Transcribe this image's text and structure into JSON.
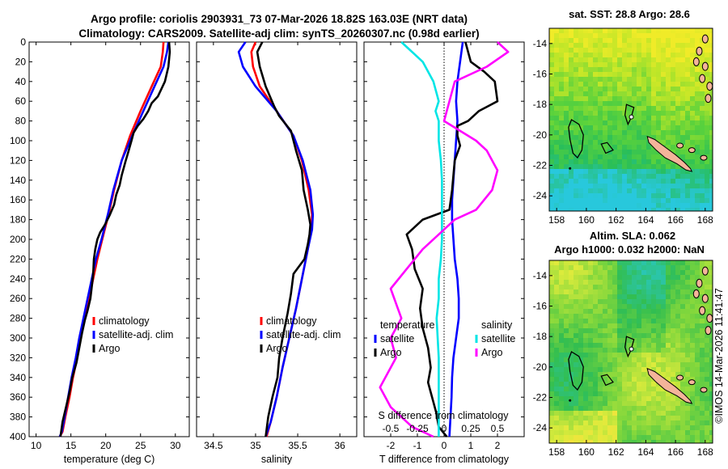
{
  "title_line1": "Argo profile: coriolis 2903931_73 07-Mar-2026 18.82S 163.03E (NRT data)",
  "title_line2": "Climatology: CARS2009. Satellite-adj clim: synTS_20260307.nc (0.98d earlier)",
  "copyright": "©IMOS 14-Mar-2026 11:41:47",
  "colors": {
    "climatology": "#ff0000",
    "satellite": "#0000ff",
    "argo": "#000000",
    "salinity_sat": "#00e5e5",
    "salinity_argo": "#ff00ff",
    "land": "#f4b49a"
  },
  "chart_data": [
    {
      "type": "line",
      "name": "temperature-profile",
      "xlabel": "temperature (deg C)",
      "xlim": [
        9,
        32
      ],
      "xticks": [
        10,
        15,
        20,
        25,
        30
      ],
      "ylim": [
        0,
        400
      ],
      "yticks": [
        0,
        20,
        40,
        60,
        80,
        100,
        120,
        140,
        160,
        180,
        200,
        220,
        240,
        260,
        280,
        300,
        320,
        340,
        360,
        380,
        400
      ],
      "legend": [
        "climatology",
        "satellite-adj. clim",
        "Argo"
      ],
      "legend_location": "lower-right",
      "series": [
        {
          "name": "climatology",
          "color": "#ff0000",
          "x": [
            28.3,
            28.2,
            27.9,
            26.6,
            25.0,
            23.5,
            22.3,
            21.2,
            20.4,
            19.5,
            18.8,
            18.2,
            17.6,
            17.0,
            16.4,
            15.9,
            15.3,
            14.8,
            14.2,
            13.8,
            13.4
          ],
          "depth": [
            0,
            10,
            25,
            45,
            70,
            95,
            120,
            150,
            175,
            200,
            220,
            240,
            260,
            280,
            300,
            320,
            340,
            360,
            380,
            395,
            400
          ]
        },
        {
          "name": "satellite-adj. clim",
          "color": "#0000ff",
          "x": [
            29.0,
            28.8,
            28.3,
            27.0,
            25.4,
            23.8,
            22.3,
            21.1,
            20.3,
            19.4,
            18.6,
            18.0,
            17.4,
            16.8,
            16.2,
            15.7,
            15.1,
            14.6,
            14.1,
            13.7,
            13.4
          ],
          "depth": [
            0,
            10,
            25,
            45,
            70,
            95,
            120,
            150,
            175,
            200,
            220,
            240,
            260,
            280,
            300,
            320,
            340,
            360,
            380,
            395,
            400
          ]
        },
        {
          "name": "Argo",
          "color": "#000000",
          "x": [
            29.1,
            29.2,
            29.0,
            28.5,
            27.5,
            26.6,
            26.1,
            25.4,
            24.6,
            24.0,
            23.7,
            23.3,
            22.8,
            22.3,
            22.0,
            21.5,
            21.2,
            20.6,
            19.9,
            19.2,
            18.8,
            18.5,
            18.3,
            18.2,
            18.0,
            17.8,
            17.4,
            17.0,
            16.6,
            16.2,
            15.8,
            15.2,
            14.8,
            14.3,
            13.8,
            13.5
          ],
          "depth": [
            0,
            10,
            25,
            40,
            55,
            62,
            70,
            78,
            85,
            92,
            100,
            110,
            122,
            135,
            145,
            155,
            165,
            175,
            185,
            193,
            200,
            210,
            220,
            235,
            248,
            260,
            272,
            282,
            295,
            310,
            325,
            340,
            355,
            370,
            385,
            400
          ]
        }
      ]
    },
    {
      "type": "line",
      "name": "salinity-profile",
      "xlabel": "salinity",
      "xlim": [
        34.3,
        36.2
      ],
      "xticks": [
        34.5,
        35,
        35.5,
        36
      ],
      "ylim": [
        0,
        400
      ],
      "legend": [
        "climatology",
        "satellite-adj. clim",
        "Argo"
      ],
      "legend_location": "lower-right",
      "series": [
        {
          "name": "climatology",
          "color": "#ff0000",
          "x": [
            35.0,
            34.95,
            34.97,
            35.05,
            35.25,
            35.45,
            35.55,
            35.63,
            35.67,
            35.66,
            35.62,
            35.55,
            35.48,
            35.4,
            35.32,
            35.25,
            35.18,
            35.13
          ],
          "depth": [
            0,
            10,
            25,
            45,
            70,
            95,
            120,
            150,
            175,
            190,
            210,
            240,
            270,
            300,
            330,
            360,
            385,
            400
          ]
        },
        {
          "name": "satellite-adj. clim",
          "color": "#0000ff",
          "x": [
            34.88,
            34.8,
            34.85,
            35.0,
            35.25,
            35.45,
            35.56,
            35.65,
            35.68,
            35.67,
            35.62,
            35.55,
            35.48,
            35.4,
            35.32,
            35.25,
            35.18,
            35.12
          ],
          "depth": [
            0,
            10,
            25,
            45,
            70,
            95,
            120,
            150,
            175,
            190,
            210,
            240,
            270,
            300,
            330,
            360,
            385,
            400
          ]
        },
        {
          "name": "Argo",
          "color": "#000000",
          "x": [
            35.08,
            35.02,
            35.05,
            35.12,
            35.22,
            35.28,
            35.42,
            35.48,
            35.55,
            35.57,
            35.62,
            35.65,
            35.64,
            35.62,
            35.58,
            35.45,
            35.42,
            35.38,
            35.32,
            35.28,
            35.26,
            35.2,
            35.15,
            35.12
          ],
          "depth": [
            0,
            10,
            25,
            45,
            65,
            75,
            90,
            110,
            130,
            150,
            170,
            185,
            195,
            205,
            220,
            235,
            255,
            275,
            300,
            320,
            340,
            360,
            380,
            400
          ]
        }
      ]
    },
    {
      "type": "line",
      "name": "difference-profile",
      "xlabel": "T difference from climatology",
      "xlabel_top": "S difference from climatology",
      "xlim": [
        -3,
        3
      ],
      "xticks": [
        -2,
        -1,
        0,
        1,
        2
      ],
      "top_xticks": [
        -0.5,
        -0.25,
        0,
        0.25,
        0.5
      ],
      "top_tick_labels": [
        "-0.5",
        "-0.25",
        "0",
        "0.25",
        "0.5"
      ],
      "ylim": [
        0,
        400
      ],
      "legend_temperature": [
        "temperature",
        "satellite",
        "Argo"
      ],
      "legend_salinity": [
        "salinity",
        "satellite",
        "Argo"
      ],
      "series": [
        {
          "name": "temperature satellite",
          "color": "#0000ff",
          "x": [
            0.7,
            0.6,
            0.5,
            0.45,
            0.5,
            0.45,
            0.4,
            0.35,
            0.3,
            0.3,
            0.35,
            0.4,
            0.5,
            0.55,
            0.55,
            0.45,
            0.35,
            0.3,
            0.28,
            0.2
          ],
          "depth": [
            0,
            20,
            40,
            60,
            80,
            100,
            120,
            140,
            160,
            180,
            200,
            220,
            240,
            260,
            280,
            300,
            320,
            340,
            360,
            400
          ]
        },
        {
          "name": "temperature Argo",
          "color": "#000000",
          "x": [
            0.8,
            0.9,
            1.0,
            1.5,
            1.9,
            2.0,
            1.3,
            0.9,
            0.5,
            0.5,
            0.6,
            0.4,
            0.3,
            0.2,
            -0.8,
            -1.4,
            -1.2,
            -1.1,
            -0.8,
            -0.9,
            -0.8,
            -0.6,
            -0.5,
            -0.6,
            -0.5,
            -0.4,
            -0.3,
            -0.2,
            0.1
          ],
          "depth": [
            0,
            10,
            20,
            30,
            40,
            60,
            70,
            80,
            85,
            95,
            105,
            120,
            150,
            170,
            180,
            195,
            210,
            230,
            250,
            270,
            290,
            310,
            330,
            345,
            355,
            365,
            375,
            390,
            400
          ]
        },
        {
          "name": "salinity satellite",
          "color": "#00e5e5",
          "x": [
            -0.4,
            -0.2,
            -0.1,
            -0.05,
            -0.08,
            -0.05,
            -0.05,
            -0.03,
            -0.02,
            -0.02,
            -0.02,
            -0.02,
            -0.03,
            -0.05,
            -0.05,
            -0.07,
            -0.05,
            -0.05,
            -0.05
          ],
          "depth": [
            0,
            20,
            40,
            60,
            70,
            80,
            100,
            120,
            140,
            160,
            180,
            200,
            220,
            240,
            260,
            280,
            320,
            360,
            400
          ]
        },
        {
          "name": "salinity Argo",
          "color": "#ff00ff",
          "x": [
            0.5,
            0.6,
            0.4,
            0.1,
            0.05,
            0.0,
            0.3,
            0.4,
            0.5,
            0.45,
            0.3,
            0.1,
            -0.05,
            -0.2,
            -0.5,
            -0.4,
            -0.5,
            -0.45,
            -0.6,
            -0.5,
            -0.3,
            -0.1
          ],
          "depth": [
            0,
            10,
            25,
            40,
            60,
            80,
            100,
            110,
            130,
            150,
            170,
            180,
            195,
            210,
            250,
            280,
            300,
            320,
            350,
            370,
            390,
            400
          ]
        }
      ]
    },
    {
      "type": "heatmap",
      "name": "sst-map",
      "title": "sat. SST: 28.8 Argo: 28.6",
      "xticks": [
        158,
        160,
        162,
        164,
        166,
        168
      ],
      "yticks": [
        -14,
        -16,
        -18,
        -20,
        -22,
        -24
      ],
      "xlim": [
        157.5,
        168.5
      ],
      "ylim": [
        -25,
        -13
      ],
      "argo_position": {
        "lon": 163.03,
        "lat": -18.82
      }
    },
    {
      "type": "heatmap",
      "name": "sla-map",
      "title": "Altim. SLA: 0.062",
      "subtitle": "Argo h1000: 0.032 h2000: NaN",
      "xticks": [
        158,
        160,
        162,
        164,
        166,
        168
      ],
      "yticks": [
        -14,
        -16,
        -18,
        -20,
        -22,
        -24
      ],
      "xlim": [
        157.5,
        168.5
      ],
      "ylim": [
        -25,
        -13
      ],
      "argo_position": {
        "lon": 163.03,
        "lat": -18.82
      }
    }
  ]
}
